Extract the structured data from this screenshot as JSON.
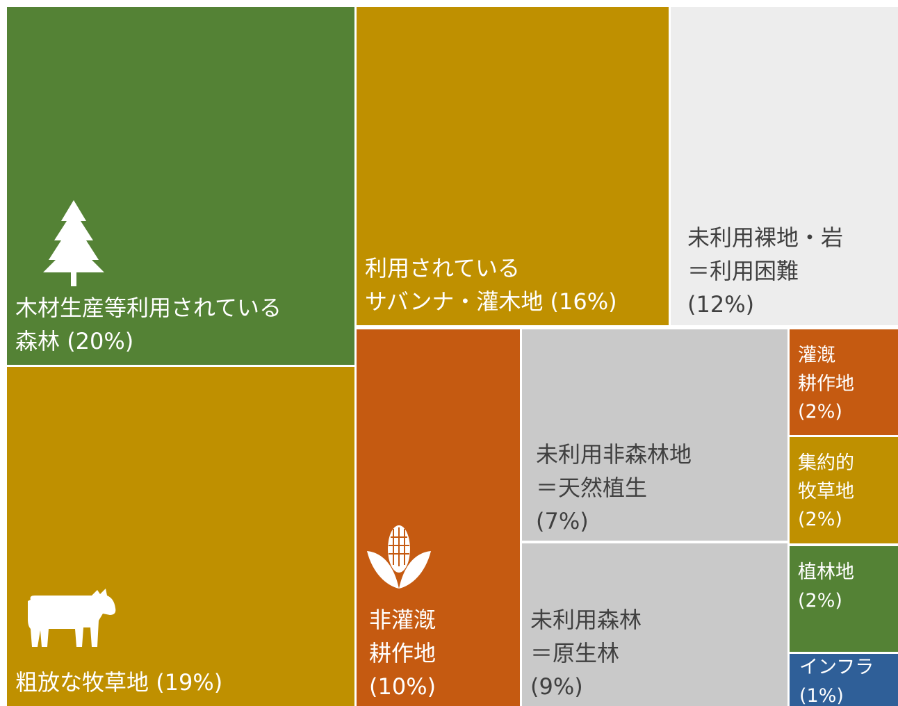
{
  "chart_data": {
    "type": "treemap",
    "categories": [
      [
        "木材生産等利用されている",
        "森林"
      ],
      [
        "粗放な牧草地"
      ],
      [
        "利用されている",
        "サバンナ・灌木地"
      ],
      [
        "未利用裸地・岩",
        "＝利用困難"
      ],
      [
        "非灌漑",
        "耕作地"
      ],
      [
        "未利用非森林地",
        "＝天然植生"
      ],
      [
        "未利用森林",
        "＝原生林"
      ],
      [
        "灌漑",
        "耕作地"
      ],
      [
        "集約的",
        "牧草地"
      ],
      [
        "植林地"
      ],
      [
        "インフラ"
      ]
    ],
    "values": [
      20,
      19,
      16,
      12,
      10,
      7,
      9,
      2,
      2,
      2,
      1
    ],
    "value_labels": [
      "(20%)",
      "(19%)",
      "(16%)",
      "(12%)",
      "(10%)",
      "(7%)",
      "(9%)",
      "(2%)",
      "(2%)",
      "(2%)",
      "(1%)"
    ],
    "colors": [
      "#548235",
      "#bf9000",
      "#bf9000",
      "#ededed",
      "#c55a11",
      "#c9c9c9",
      "#c9c9c9",
      "#c55a11",
      "#bf9000",
      "#548235",
      "#2f5f98"
    ]
  }
}
